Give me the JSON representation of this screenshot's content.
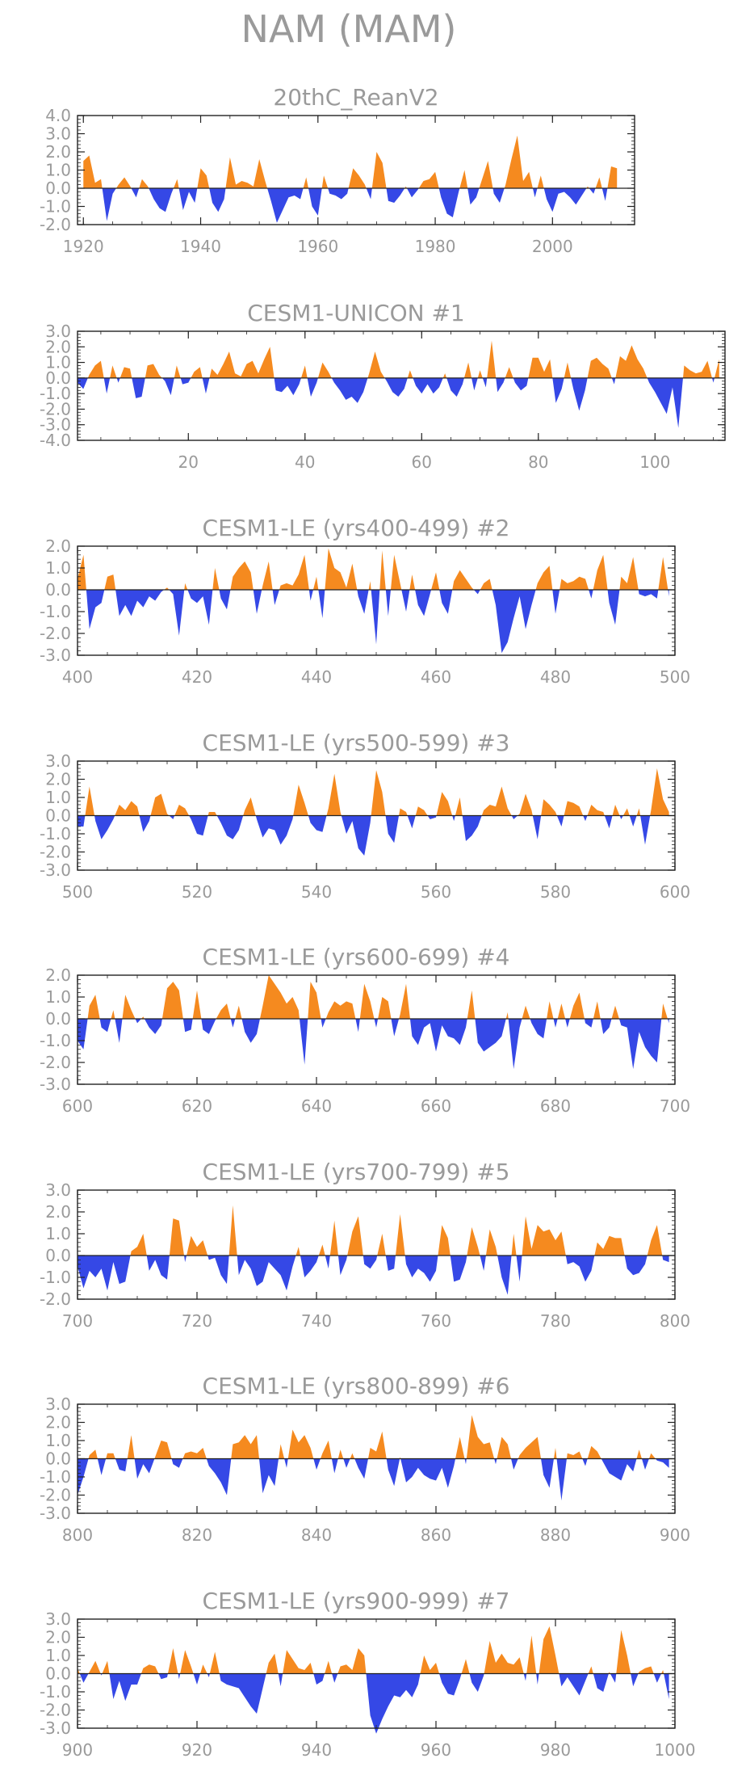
{
  "page": {
    "title": "NAM (MAM)"
  },
  "colors": {
    "positive": "#f58a1f",
    "negative": "#3548e6",
    "axis": "#222222",
    "text": "#9a9a9a"
  },
  "chart_data": [
    {
      "type": "area",
      "title": "20thC_ReanV2",
      "x_start": 1920,
      "x_end": 2011,
      "xlim": [
        1919,
        2014
      ],
      "ylim": [
        -2.0,
        4.0
      ],
      "y_ticks": [
        "4.0",
        "3.0",
        "2.0",
        "1.0",
        "0.0",
        "-1.0",
        "-2.0"
      ],
      "y_tick_values": [
        4,
        3,
        2,
        1,
        0,
        -1,
        -2
      ],
      "x_ticks": [
        "1920",
        "1940",
        "1960",
        "1980",
        "2000"
      ],
      "x_tick_values": [
        1920,
        1940,
        1960,
        1980,
        2000
      ],
      "values": [
        1.5,
        1.8,
        0.3,
        0.5,
        -1.8,
        -0.3,
        0.2,
        0.6,
        0.1,
        -0.5,
        0.5,
        0.1,
        -0.6,
        -1.1,
        -1.3,
        -0.3,
        0.5,
        -1.2,
        -0.2,
        -0.8,
        1.1,
        0.7,
        -0.8,
        -1.3,
        -0.6,
        1.7,
        0.2,
        0.4,
        0.3,
        0.1,
        1.6,
        0.4,
        -0.7,
        -1.9,
        -1.2,
        -0.5,
        -0.4,
        -0.6,
        0.6,
        -1.0,
        -1.5,
        0.7,
        -0.3,
        -0.4,
        -0.6,
        -0.3,
        1.1,
        0.7,
        0.2,
        -0.6,
        2.0,
        1.4,
        -0.7,
        -0.8,
        -0.4,
        0.1,
        -0.5,
        -0.1,
        0.4,
        0.5,
        0.9,
        -0.5,
        -1.4,
        -1.6,
        -0.2,
        1.0,
        -0.9,
        -0.5,
        0.5,
        1.5,
        -0.3,
        -0.8,
        0.2,
        1.6,
        2.9,
        0.4,
        0.9,
        -0.5,
        0.7,
        -0.6,
        -1.3,
        -0.3,
        -0.2,
        -0.5,
        -0.9,
        -0.4,
        0.1,
        -0.3,
        0.6,
        -0.7,
        1.2,
        1.1
      ]
    },
    {
      "type": "area",
      "title": "CESM1-UNICON        #1",
      "x_start": 1,
      "x_end": 111,
      "xlim": [
        1,
        112
      ],
      "ylim": [
        -4.0,
        3.0
      ],
      "y_ticks": [
        "3.0",
        "2.0",
        "1.0",
        "0.0",
        "-1.0",
        "-2.0",
        "-3.0",
        "-4.0"
      ],
      "y_tick_values": [
        3,
        2,
        1,
        0,
        -1,
        -2,
        -3,
        -4
      ],
      "x_ticks": [
        "20",
        "40",
        "60",
        "80",
        "100"
      ],
      "x_tick_values": [
        20,
        40,
        60,
        80,
        100
      ],
      "values": [
        -0.3,
        -0.7,
        0.2,
        0.8,
        1.1,
        -1.0,
        0.8,
        -0.3,
        0.7,
        0.6,
        -1.3,
        -1.2,
        0.8,
        0.9,
        0.2,
        -0.2,
        -1.1,
        0.8,
        -0.4,
        -0.3,
        0.4,
        0.7,
        -1.0,
        0.6,
        0.2,
        0.9,
        1.7,
        0.3,
        0.1,
        0.9,
        1.1,
        0.3,
        1.2,
        2.0,
        -0.8,
        -0.9,
        -0.5,
        -1.1,
        -0.4,
        0.8,
        -1.2,
        -0.3,
        1.0,
        0.4,
        -0.3,
        -0.8,
        -1.4,
        -1.2,
        -1.6,
        -0.9,
        0.3,
        1.7,
        0.4,
        -0.2,
        -0.9,
        -1.2,
        -0.7,
        0.5,
        -0.5,
        -1.0,
        -0.4,
        -1.0,
        -0.6,
        0.3,
        -0.8,
        -1.2,
        -0.4,
        1.0,
        -0.8,
        0.5,
        -0.6,
        2.4,
        -0.9,
        -0.3,
        0.7,
        -0.3,
        -0.8,
        -0.5,
        1.3,
        1.3,
        0.4,
        1.2,
        -1.6,
        -0.7,
        1.0,
        -0.7,
        -2.1,
        -0.8,
        1.1,
        1.3,
        0.9,
        0.6,
        -0.4,
        1.4,
        1.1,
        2.1,
        1.2,
        0.6,
        -0.3,
        -0.9,
        -1.6,
        -2.3,
        -0.6,
        -3.2,
        0.8,
        0.5,
        0.3,
        0.4,
        1.1,
        -0.3,
        1.2
      ]
    },
    {
      "type": "area",
      "title": "CESM1-LE (yrs400-499) #2",
      "x_start": 400,
      "x_end": 499,
      "xlim": [
        400,
        500
      ],
      "ylim": [
        -3.0,
        2.0
      ],
      "y_ticks": [
        "2.0",
        "1.0",
        "0.0",
        "-1.0",
        "-2.0",
        "-3.0"
      ],
      "y_tick_values": [
        2,
        1,
        0,
        -1,
        -2,
        -3
      ],
      "x_ticks": [
        "400",
        "420",
        "440",
        "460",
        "480",
        "500"
      ],
      "x_tick_values": [
        400,
        420,
        440,
        460,
        480,
        500
      ],
      "values": [
        0.5,
        1.6,
        -1.8,
        -0.8,
        -0.6,
        0.6,
        0.7,
        -1.2,
        -0.7,
        -1.2,
        -0.5,
        -0.8,
        -0.3,
        -0.5,
        -0.1,
        0.1,
        -0.2,
        -2.1,
        0.3,
        -0.4,
        -0.6,
        -0.3,
        -1.6,
        1.0,
        -0.4,
        -0.9,
        0.6,
        1.0,
        1.3,
        0.8,
        -1.1,
        0.2,
        1.3,
        -0.7,
        0.2,
        0.3,
        0.2,
        0.7,
        1.6,
        -0.5,
        0.6,
        -1.3,
        1.9,
        1.0,
        0.8,
        0.1,
        1.2,
        -0.3,
        -1.1,
        0.4,
        -2.5,
        1.8,
        -1.2,
        1.6,
        0.3,
        -1.0,
        0.7,
        -0.7,
        -1.2,
        -0.2,
        0.8,
        -0.6,
        -1.1,
        0.4,
        0.9,
        0.5,
        0.1,
        -0.2,
        0.3,
        0.5,
        -0.7,
        -2.9,
        -2.4,
        -1.3,
        -0.3,
        -1.8,
        -0.7,
        0.3,
        0.8,
        1.1,
        -1.1,
        0.5,
        0.3,
        0.4,
        0.6,
        0.5,
        -0.4,
        0.9,
        1.6,
        -0.6,
        -1.6,
        0.6,
        0.3,
        1.5,
        -0.2,
        -0.3,
        -0.2,
        -0.4,
        1.5,
        -0.3
      ]
    },
    {
      "type": "area",
      "title": "CESM1-LE (yrs500-599) #3",
      "x_start": 500,
      "x_end": 599,
      "xlim": [
        500,
        600
      ],
      "ylim": [
        -3.0,
        3.0
      ],
      "y_ticks": [
        "3.0",
        "2.0",
        "1.0",
        "0.0",
        "-1.0",
        "-2.0",
        "-3.0"
      ],
      "y_tick_values": [
        3,
        2,
        1,
        0,
        -1,
        -2,
        -3
      ],
      "x_ticks": [
        "500",
        "520",
        "540",
        "560",
        "580",
        "600"
      ],
      "x_tick_values": [
        500,
        520,
        540,
        560,
        580,
        600
      ],
      "values": [
        -0.6,
        -0.6,
        1.6,
        -0.3,
        -1.3,
        -0.8,
        -0.2,
        0.6,
        0.3,
        0.8,
        0.5,
        -0.9,
        -0.3,
        1.0,
        1.2,
        0.1,
        -0.2,
        0.6,
        0.4,
        -0.2,
        -1.0,
        -1.1,
        0.2,
        0.2,
        -0.4,
        -1.1,
        -1.3,
        -0.8,
        0.3,
        1.0,
        -0.2,
        -1.2,
        -0.7,
        -0.8,
        -1.6,
        -1.1,
        -0.2,
        1.7,
        0.7,
        -0.4,
        -0.8,
        -0.9,
        0.4,
        2.3,
        0.2,
        -1.0,
        -0.3,
        -1.8,
        -2.2,
        -0.4,
        2.5,
        1.3,
        -1.0,
        -1.5,
        0.4,
        0.2,
        -0.7,
        0.5,
        0.3,
        -0.2,
        -0.1,
        1.3,
        0.8,
        -0.3,
        1.0,
        -1.4,
        -1.1,
        -0.6,
        0.3,
        0.6,
        0.5,
        1.6,
        0.4,
        -0.2,
        0.1,
        1.2,
        0.3,
        -1.3,
        0.9,
        0.6,
        0.2,
        -0.6,
        0.8,
        0.7,
        0.5,
        -0.3,
        0.6,
        0.3,
        0.2,
        -0.7,
        0.6,
        -0.2,
        0.4,
        -0.6,
        0.4,
        -1.6,
        0.3,
        2.6,
        0.9,
        0.2
      ]
    },
    {
      "type": "area",
      "title": "CESM1-LE (yrs600-699) #4",
      "x_start": 600,
      "x_end": 699,
      "xlim": [
        600,
        700
      ],
      "ylim": [
        -3.0,
        2.0
      ],
      "y_ticks": [
        "2.0",
        "1.0",
        "0.0",
        "-1.0",
        "-2.0",
        "-3.0"
      ],
      "y_tick_values": [
        2,
        1,
        0,
        -1,
        -2,
        -3
      ],
      "x_ticks": [
        "600",
        "620",
        "640",
        "660",
        "680",
        "700"
      ],
      "x_tick_values": [
        600,
        620,
        640,
        660,
        680,
        700
      ],
      "values": [
        -1.0,
        -1.4,
        0.6,
        1.1,
        -0.4,
        -0.6,
        0.4,
        -1.1,
        1.1,
        0.4,
        -0.2,
        0.1,
        -0.4,
        -0.7,
        -0.3,
        1.4,
        1.7,
        1.3,
        -0.6,
        -0.5,
        1.3,
        -0.5,
        -0.7,
        -0.1,
        0.4,
        0.7,
        -0.4,
        0.6,
        -0.6,
        -1.1,
        -0.7,
        0.6,
        2.0,
        1.6,
        1.2,
        0.7,
        1.0,
        0.4,
        -2.1,
        1.7,
        1.2,
        -0.4,
        0.3,
        0.8,
        0.6,
        0.8,
        0.7,
        -0.6,
        1.6,
        0.8,
        -0.4,
        1.0,
        0.8,
        -0.8,
        0.2,
        1.6,
        -0.8,
        -1.2,
        -0.4,
        -0.2,
        -1.5,
        -0.3,
        -0.8,
        -0.9,
        -1.2,
        -0.4,
        1.3,
        -1.1,
        -1.5,
        -1.3,
        -1.1,
        -0.8,
        0.3,
        -2.3,
        -0.4,
        0.6,
        -0.2,
        -0.7,
        -0.9,
        0.8,
        -0.4,
        0.7,
        -0.4,
        0.6,
        1.2,
        -0.2,
        -0.4,
        0.8,
        -0.7,
        -0.4,
        0.6,
        -0.3,
        -0.4,
        -2.3,
        -0.6,
        -1.3,
        -1.7,
        -2.0,
        0.7,
        -0.2
      ]
    },
    {
      "type": "area",
      "title": "CESM1-LE (yrs700-799) #5",
      "x_start": 700,
      "x_end": 799,
      "xlim": [
        700,
        800
      ],
      "ylim": [
        -2.0,
        3.0
      ],
      "y_ticks": [
        "3.0",
        "2.0",
        "1.0",
        "0.0",
        "-1.0",
        "-2.0"
      ],
      "y_tick_values": [
        3,
        2,
        1,
        0,
        -1,
        -2
      ],
      "x_ticks": [
        "700",
        "720",
        "740",
        "760",
        "780",
        "800"
      ],
      "x_tick_values": [
        700,
        720,
        740,
        760,
        780,
        800
      ],
      "values": [
        -0.5,
        -1.5,
        -0.7,
        -1.0,
        -0.6,
        -1.6,
        -0.3,
        -1.3,
        -1.2,
        0.2,
        0.4,
        1.0,
        -0.7,
        -0.2,
        -0.9,
        -1.1,
        1.7,
        1.6,
        -0.3,
        0.9,
        0.4,
        0.7,
        -0.2,
        -0.1,
        -0.9,
        -1.3,
        2.3,
        -0.9,
        -0.2,
        -0.6,
        -1.4,
        -1.2,
        -0.3,
        -0.6,
        -0.9,
        -1.6,
        -0.5,
        0.4,
        -1.0,
        -0.7,
        -0.3,
        0.5,
        -0.6,
        1.6,
        -0.9,
        -0.2,
        1.1,
        1.8,
        -0.4,
        -0.6,
        -0.2,
        1.0,
        -0.7,
        -0.6,
        1.9,
        -0.4,
        -1.0,
        -0.6,
        -0.8,
        -1.2,
        -0.7,
        1.4,
        0.8,
        -1.2,
        -1.1,
        -0.3,
        1.3,
        0.4,
        -0.7,
        1.2,
        0.4,
        -1.0,
        -1.8,
        1.0,
        -1.2,
        1.8,
        0.3,
        1.4,
        1.1,
        1.2,
        0.7,
        1.1,
        -0.4,
        -0.3,
        -0.5,
        -1.2,
        -0.7,
        0.6,
        0.3,
        0.9,
        0.8,
        0.8,
        -0.6,
        -0.9,
        -0.8,
        -0.4,
        0.7,
        1.4,
        -0.2,
        -0.3
      ]
    },
    {
      "type": "area",
      "title": "CESM1-LE (yrs800-899) #6",
      "x_start": 800,
      "x_end": 899,
      "xlim": [
        800,
        900
      ],
      "ylim": [
        -3.0,
        3.0
      ],
      "y_ticks": [
        "3.0",
        "2.0",
        "1.0",
        "0.0",
        "-1.0",
        "-2.0",
        "-3.0"
      ],
      "y_tick_values": [
        3,
        2,
        1,
        0,
        -1,
        -2,
        -3
      ],
      "x_ticks": [
        "800",
        "820",
        "840",
        "860",
        "880",
        "900"
      ],
      "x_tick_values": [
        800,
        820,
        840,
        860,
        880,
        900
      ],
      "values": [
        -2.0,
        -1.0,
        0.2,
        0.5,
        -0.9,
        0.3,
        0.3,
        -0.6,
        -0.7,
        1.3,
        -1.1,
        -0.3,
        -0.8,
        0.1,
        1.0,
        0.9,
        -0.3,
        -0.5,
        0.3,
        0.4,
        0.3,
        0.6,
        -0.4,
        -0.8,
        -1.3,
        -2.0,
        0.8,
        0.9,
        1.3,
        0.8,
        1.3,
        -1.9,
        -0.9,
        -1.5,
        0.8,
        -0.5,
        1.6,
        0.9,
        1.3,
        0.6,
        -0.6,
        0.3,
        1.0,
        -0.8,
        0.5,
        -0.5,
        0.3,
        -0.5,
        -1.1,
        0.6,
        0.4,
        1.5,
        -0.6,
        -1.5,
        0.1,
        -1.3,
        -1.0,
        -0.5,
        -0.9,
        -1.1,
        -1.2,
        -0.5,
        -1.6,
        -0.4,
        1.2,
        -0.3,
        2.4,
        1.2,
        0.8,
        0.9,
        -0.3,
        1.2,
        0.8,
        -0.6,
        0.2,
        0.6,
        0.9,
        1.2,
        -0.9,
        -1.6,
        0.6,
        -2.3,
        0.3,
        0.2,
        0.4,
        -0.4,
        0.7,
        0.4,
        -0.2,
        -0.8,
        -1.0,
        -1.2,
        -0.3,
        -0.7,
        0.5,
        -0.6,
        0.3,
        -0.1,
        -0.2,
        -0.5
      ]
    },
    {
      "type": "area",
      "title": "CESM1-LE (yrs900-999) #7",
      "x_start": 900,
      "x_end": 999,
      "xlim": [
        900,
        1000
      ],
      "ylim": [
        -3.0,
        3.0
      ],
      "y_ticks": [
        "3.0",
        "2.0",
        "1.0",
        "0.0",
        "-1.0",
        "-2.0",
        "-3.0"
      ],
      "y_tick_values": [
        3,
        2,
        1,
        0,
        -1,
        -2,
        -3
      ],
      "x_ticks": [
        "900",
        "920",
        "940",
        "960",
        "980",
        "1000"
      ],
      "x_tick_values": [
        900,
        920,
        940,
        960,
        980,
        1000
      ],
      "values": [
        0.3,
        -0.5,
        0.1,
        0.7,
        -0.1,
        0.7,
        -1.4,
        -0.4,
        -1.5,
        -0.6,
        -0.6,
        0.3,
        0.5,
        0.4,
        -0.3,
        -0.2,
        1.4,
        -0.3,
        1.3,
        0.4,
        -0.6,
        0.5,
        -0.2,
        1.2,
        -0.4,
        -0.6,
        -0.7,
        -0.8,
        -1.3,
        -1.8,
        -2.2,
        -0.8,
        0.6,
        1.1,
        -0.7,
        1.3,
        0.8,
        0.3,
        0.2,
        0.6,
        -0.6,
        -0.4,
        0.7,
        -0.5,
        0.4,
        0.5,
        0.2,
        1.4,
        1.0,
        -2.3,
        -3.3,
        -2.5,
        -1.8,
        -1.2,
        -1.3,
        -0.9,
        -1.3,
        -0.6,
        1.0,
        0.2,
        0.6,
        -0.5,
        -1.1,
        -1.2,
        -0.3,
        0.8,
        -0.5,
        -1.0,
        -0.1,
        1.8,
        0.6,
        1.1,
        0.6,
        0.5,
        0.9,
        -0.4,
        2.1,
        -0.6,
        1.9,
        2.6,
        1.0,
        -0.7,
        -0.2,
        -0.7,
        -1.2,
        -0.4,
        0.4,
        -0.8,
        -1.0,
        0.1,
        -0.5,
        2.4,
        1.0,
        -0.7,
        0.1,
        0.3,
        0.4,
        -0.5,
        0.2,
        -1.4
      ]
    }
  ]
}
